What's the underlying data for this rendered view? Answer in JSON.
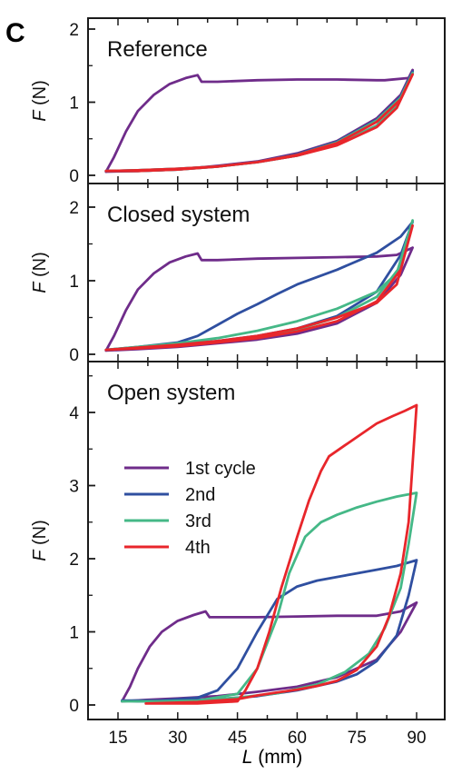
{
  "figure": {
    "panel_label": "C",
    "xlabel_var": "L",
    "xlabel_unit": " (mm)",
    "ylabel_var": "F",
    "ylabel_unit": " (N)"
  },
  "colors": {
    "1st cycle": "#6f2c8a",
    "2nd": "#2f4fa0",
    "3rd": "#45b887",
    "4th": "#e8262b",
    "frame": "#1a1a1a"
  },
  "chart_data": [
    {
      "type": "line",
      "title": "Reference",
      "xlabel": "",
      "ylabel": "F (N)",
      "xlim": [
        8,
        95
      ],
      "ylim": [
        0,
        2
      ],
      "xticks": [
        15,
        30,
        45,
        60,
        75,
        90
      ],
      "yticks": [
        0,
        1,
        2
      ],
      "legend": null,
      "series": [
        {
          "key": "1st cycle",
          "x": [
            12,
            14,
            17,
            20,
            24,
            28,
            32,
            35,
            36,
            40,
            50,
            60,
            70,
            80,
            82,
            88,
            89
          ],
          "y": [
            0.05,
            0.25,
            0.6,
            0.88,
            1.1,
            1.25,
            1.33,
            1.37,
            1.28,
            1.28,
            1.3,
            1.31,
            1.31,
            1.3,
            1.3,
            1.33,
            1.44
          ]
        },
        {
          "key": "1st cycle",
          "x": [
            89,
            86,
            80,
            70,
            60,
            50,
            40,
            30,
            20,
            12
          ],
          "y": [
            1.44,
            1.1,
            0.78,
            0.47,
            0.3,
            0.19,
            0.13,
            0.08,
            0.06,
            0.05
          ]
        },
        {
          "key": "2nd",
          "x": [
            12,
            20,
            30,
            40,
            50,
            60,
            70,
            80,
            85,
            89,
            89,
            86,
            80,
            70,
            60,
            50,
            40,
            30,
            20,
            12
          ],
          "y": [
            0.06,
            0.07,
            0.09,
            0.12,
            0.18,
            0.27,
            0.42,
            0.68,
            0.95,
            1.42,
            1.42,
            1.08,
            0.76,
            0.46,
            0.29,
            0.18,
            0.12,
            0.08,
            0.06,
            0.06
          ]
        },
        {
          "key": "3rd",
          "x": [
            12,
            20,
            30,
            40,
            50,
            60,
            70,
            80,
            85,
            89,
            89,
            86,
            80,
            70,
            60,
            50,
            40,
            30,
            20,
            12
          ],
          "y": [
            0.06,
            0.07,
            0.09,
            0.12,
            0.18,
            0.27,
            0.42,
            0.68,
            0.95,
            1.4,
            1.4,
            1.06,
            0.75,
            0.45,
            0.28,
            0.18,
            0.12,
            0.08,
            0.06,
            0.06
          ]
        },
        {
          "key": "4th",
          "x": [
            12,
            20,
            30,
            40,
            50,
            60,
            70,
            80,
            85,
            89,
            89,
            86,
            80,
            70,
            60,
            50,
            40,
            30,
            20,
            12
          ],
          "y": [
            0.06,
            0.07,
            0.09,
            0.12,
            0.18,
            0.27,
            0.41,
            0.66,
            0.92,
            1.38,
            1.38,
            1.04,
            0.73,
            0.44,
            0.28,
            0.18,
            0.12,
            0.08,
            0.06,
            0.06
          ]
        }
      ]
    },
    {
      "type": "line",
      "title": "Closed system",
      "xlabel": "",
      "ylabel": "F (N)",
      "xlim": [
        8,
        95
      ],
      "ylim": [
        0,
        2.25
      ],
      "xticks": [
        15,
        30,
        45,
        60,
        75,
        90
      ],
      "yticks": [
        0,
        1,
        2
      ],
      "legend": null,
      "series": [
        {
          "key": "1st cycle",
          "x": [
            12,
            14,
            17,
            20,
            24,
            28,
            32,
            35,
            36,
            40,
            50,
            60,
            70,
            80,
            85,
            89,
            89,
            86,
            80,
            70,
            60,
            50,
            40,
            30,
            20,
            12
          ],
          "y": [
            0.05,
            0.25,
            0.6,
            0.88,
            1.1,
            1.25,
            1.33,
            1.37,
            1.28,
            1.28,
            1.3,
            1.31,
            1.32,
            1.33,
            1.35,
            1.45,
            1.45,
            1.08,
            0.7,
            0.42,
            0.28,
            0.2,
            0.15,
            0.1,
            0.07,
            0.05
          ]
        },
        {
          "key": "2nd",
          "x": [
            12,
            20,
            30,
            35,
            40,
            45,
            50,
            55,
            60,
            70,
            80,
            86,
            89,
            89,
            86,
            80,
            70,
            60,
            50,
            40,
            30,
            20,
            12
          ],
          "y": [
            0.06,
            0.1,
            0.16,
            0.25,
            0.4,
            0.55,
            0.68,
            0.82,
            0.95,
            1.15,
            1.38,
            1.6,
            1.8,
            1.8,
            1.35,
            0.85,
            0.52,
            0.35,
            0.25,
            0.18,
            0.13,
            0.09,
            0.06
          ]
        },
        {
          "key": "3rd",
          "x": [
            12,
            20,
            30,
            40,
            50,
            60,
            70,
            80,
            85,
            89,
            89,
            86,
            80,
            70,
            60,
            50,
            40,
            30,
            20,
            12
          ],
          "y": [
            0.06,
            0.1,
            0.15,
            0.22,
            0.32,
            0.45,
            0.62,
            0.85,
            1.1,
            1.82,
            1.82,
            1.2,
            0.78,
            0.5,
            0.34,
            0.24,
            0.17,
            0.12,
            0.09,
            0.06
          ]
        },
        {
          "key": "4th",
          "x": [
            12,
            20,
            30,
            40,
            50,
            60,
            70,
            80,
            85,
            89,
            89,
            86,
            80,
            70,
            60,
            50,
            40,
            30,
            20,
            12
          ],
          "y": [
            0.06,
            0.09,
            0.13,
            0.18,
            0.25,
            0.35,
            0.5,
            0.7,
            0.95,
            1.75,
            1.75,
            1.15,
            0.72,
            0.45,
            0.31,
            0.22,
            0.16,
            0.11,
            0.08,
            0.06
          ]
        }
      ]
    },
    {
      "type": "line",
      "title": "Open system",
      "xlabel": "L (mm)",
      "ylabel": "F (N)",
      "xlim": [
        8,
        95
      ],
      "ylim": [
        0,
        4.7
      ],
      "xticks": [
        15,
        30,
        45,
        60,
        75,
        90
      ],
      "yticks": [
        0,
        1,
        2,
        3,
        4
      ],
      "legend": {
        "position": "middle-left",
        "entries": [
          "1st cycle",
          "2nd",
          "3rd",
          "4th"
        ]
      },
      "series": [
        {
          "key": "1st cycle",
          "x": [
            16,
            18,
            20,
            23,
            26,
            30,
            34,
            37,
            38,
            42,
            50,
            60,
            70,
            80,
            86,
            90,
            90,
            86,
            80,
            70,
            60,
            50,
            40,
            30,
            22,
            16
          ],
          "y": [
            0.05,
            0.25,
            0.5,
            0.8,
            1.0,
            1.15,
            1.23,
            1.28,
            1.2,
            1.2,
            1.2,
            1.21,
            1.22,
            1.22,
            1.28,
            1.4,
            1.4,
            1.0,
            0.62,
            0.38,
            0.25,
            0.18,
            0.12,
            0.09,
            0.07,
            0.05
          ]
        },
        {
          "key": "2nd",
          "x": [
            16,
            25,
            35,
            40,
            45,
            50,
            55,
            60,
            65,
            70,
            75,
            80,
            85,
            90,
            90,
            88,
            85,
            80,
            75,
            70,
            60,
            50,
            40,
            30,
            20,
            16
          ],
          "y": [
            0.06,
            0.06,
            0.1,
            0.2,
            0.5,
            1.0,
            1.45,
            1.62,
            1.7,
            1.75,
            1.8,
            1.85,
            1.9,
            1.98,
            1.98,
            1.5,
            0.95,
            0.6,
            0.42,
            0.32,
            0.2,
            0.12,
            0.08,
            0.06,
            0.05,
            0.06
          ]
        },
        {
          "key": "3rd",
          "x": [
            16,
            25,
            35,
            45,
            50,
            55,
            58,
            62,
            66,
            70,
            75,
            80,
            85,
            90,
            90,
            88,
            86,
            82,
            78,
            72,
            65,
            55,
            45,
            35,
            25,
            16
          ],
          "y": [
            0.05,
            0.05,
            0.06,
            0.15,
            0.5,
            1.2,
            1.8,
            2.3,
            2.5,
            2.6,
            2.7,
            2.78,
            2.85,
            2.9,
            2.9,
            2.2,
            1.6,
            1.05,
            0.7,
            0.45,
            0.28,
            0.16,
            0.1,
            0.06,
            0.05,
            0.05
          ]
        },
        {
          "key": "4th",
          "x": [
            22,
            35,
            45,
            47,
            50,
            53,
            56,
            60,
            63,
            66,
            68,
            72,
            76,
            80,
            84,
            87,
            90,
            90,
            89,
            88,
            86,
            83,
            80,
            75,
            70,
            65,
            60,
            55,
            50,
            45,
            35,
            22
          ],
          "y": [
            0.02,
            0.02,
            0.05,
            0.2,
            0.5,
            1.0,
            1.6,
            2.3,
            2.8,
            3.2,
            3.4,
            3.55,
            3.7,
            3.85,
            3.95,
            4.02,
            4.1,
            4.1,
            3.3,
            2.5,
            1.8,
            1.2,
            0.8,
            0.48,
            0.33,
            0.26,
            0.21,
            0.17,
            0.13,
            0.08,
            0.04,
            0.02
          ]
        }
      ]
    }
  ]
}
